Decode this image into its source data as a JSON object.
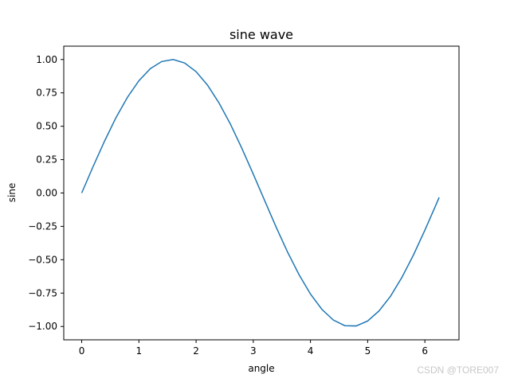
{
  "chart_data": {
    "type": "line",
    "title": "sine wave",
    "xlabel": "angle",
    "ylabel": "sine",
    "xlim": [
      -0.314,
      6.597
    ],
    "ylim": [
      -1.1,
      1.1
    ],
    "xticks": [
      0,
      1,
      2,
      3,
      4,
      5,
      6
    ],
    "xtick_labels": [
      "0",
      "1",
      "2",
      "3",
      "4",
      "5",
      "6"
    ],
    "yticks": [
      1.0,
      0.75,
      0.5,
      0.25,
      0.0,
      -0.25,
      -0.5,
      -0.75,
      -1.0
    ],
    "ytick_labels": [
      "1.00",
      "0.75",
      "0.50",
      "0.25",
      "0.00",
      "−0.25",
      "−0.50",
      "−0.75",
      "−1.00"
    ],
    "grid": false,
    "series": [
      {
        "color": "#1f77b4",
        "x": [
          0.0,
          0.2,
          0.4,
          0.6,
          0.8,
          1.0,
          1.2,
          1.4,
          1.6,
          1.8,
          2.0,
          2.2,
          2.4,
          2.6,
          2.8,
          3.0,
          3.2,
          3.4,
          3.6,
          3.8,
          4.0,
          4.2,
          4.4,
          4.6,
          4.8,
          5.0,
          5.2,
          5.4,
          5.6,
          5.8,
          6.0,
          6.2,
          6.25
        ],
        "y": [
          0.0,
          0.199,
          0.389,
          0.565,
          0.717,
          0.841,
          0.932,
          0.985,
          1.0,
          0.974,
          0.909,
          0.808,
          0.675,
          0.516,
          0.335,
          0.141,
          -0.058,
          -0.256,
          -0.443,
          -0.612,
          -0.757,
          -0.872,
          -0.952,
          -0.994,
          -0.996,
          -0.959,
          -0.883,
          -0.773,
          -0.631,
          -0.465,
          -0.279,
          -0.083,
          -0.033
        ]
      }
    ]
  },
  "watermark": "CSDN @TORE007"
}
